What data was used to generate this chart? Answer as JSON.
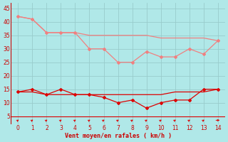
{
  "x": [
    0,
    1,
    2,
    3,
    4,
    5,
    6,
    7,
    8,
    9,
    10,
    11,
    12,
    13,
    14
  ],
  "line1": [
    42,
    41,
    36,
    36,
    36,
    30,
    30,
    25,
    25,
    29,
    27,
    27,
    30,
    28,
    33
  ],
  "line2": [
    42,
    41,
    36,
    36,
    36,
    35,
    35,
    35,
    35,
    35,
    34,
    34,
    34,
    34,
    33
  ],
  "line3": [
    14,
    15,
    13,
    15,
    13,
    13,
    12,
    10,
    11,
    8,
    10,
    11,
    11,
    15,
    15
  ],
  "line4": [
    14,
    14,
    13,
    13,
    13,
    13,
    13,
    13,
    13,
    13,
    13,
    14,
    14,
    14,
    15
  ],
  "color_light": "#f08080",
  "color_dark": "#dd0000",
  "bg_color": "#b0e8e8",
  "grid_color": "#99cccc",
  "xlabel": "Vent moyen/en rafales ( km/h )",
  "xlabel_color": "#cc0000",
  "tick_color": "#cc0000",
  "ylim": [
    2,
    47
  ],
  "xlim": [
    -0.5,
    14.5
  ],
  "yticks": [
    5,
    10,
    15,
    20,
    25,
    30,
    35,
    40,
    45
  ],
  "xticks": [
    0,
    1,
    2,
    3,
    4,
    5,
    6,
    7,
    8,
    9,
    10,
    11,
    12,
    13,
    14
  ]
}
